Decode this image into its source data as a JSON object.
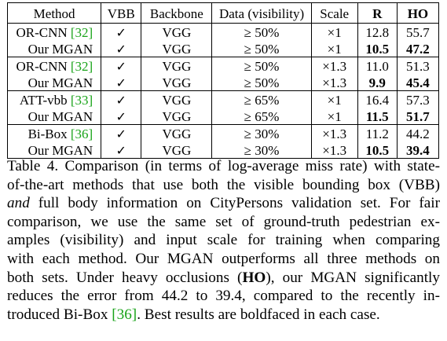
{
  "table": {
    "headers": {
      "method": "Method",
      "vbb": "VBB",
      "backbone": "Backbone",
      "data": "Data (visibility)",
      "scale": "Scale",
      "r": "R",
      "ho": "HO"
    },
    "groups": [
      {
        "rows": [
          {
            "method": "OR-CNN ",
            "ref": "[32]",
            "vbb": "✓",
            "backbone": "VGG",
            "data": "≥ 50%",
            "scale": "×1",
            "r": "12.8",
            "ho": "55.7",
            "r_bold": false,
            "ho_bold": false
          },
          {
            "method": "Our MGAN",
            "ref": "",
            "vbb": "✓",
            "backbone": "VGG",
            "data": "≥ 50%",
            "scale": "×1",
            "r": "10.5",
            "ho": "47.2",
            "r_bold": true,
            "ho_bold": true
          }
        ]
      },
      {
        "rows": [
          {
            "method": "OR-CNN ",
            "ref": "[32]",
            "vbb": "✓",
            "backbone": "VGG",
            "data": "≥ 50%",
            "scale": "×1.3",
            "r": "11.0",
            "ho": "51.3",
            "r_bold": false,
            "ho_bold": false
          },
          {
            "method": "Our MGAN",
            "ref": "",
            "vbb": "✓",
            "backbone": "VGG",
            "data": "≥ 50%",
            "scale": "×1.3",
            "r": "9.9",
            "ho": "45.4",
            "r_bold": true,
            "ho_bold": true
          }
        ]
      },
      {
        "rows": [
          {
            "method": "ATT-vbb ",
            "ref": "[33]",
            "vbb": "✓",
            "backbone": "VGG",
            "data": "≥ 65%",
            "scale": "×1",
            "r": "16.4",
            "ho": "57.3",
            "r_bold": false,
            "ho_bold": false
          },
          {
            "method": "Our MGAN",
            "ref": "",
            "vbb": "✓",
            "backbone": "VGG",
            "data": "≥ 65%",
            "scale": "×1",
            "r": "11.5",
            "ho": "51.7",
            "r_bold": true,
            "ho_bold": true
          }
        ]
      },
      {
        "rows": [
          {
            "method": "Bi-Box ",
            "ref": "[36]",
            "vbb": "✓",
            "backbone": "VGG",
            "data": "≥ 30%",
            "scale": "×1.3",
            "r": "11.2",
            "ho": "44.2",
            "r_bold": false,
            "ho_bold": false
          },
          {
            "method": "Our MGAN",
            "ref": "",
            "vbb": "✓",
            "backbone": "VGG",
            "data": "≥ 30%",
            "scale": "×1.3",
            "r": "10.5",
            "ho": "39.4",
            "r_bold": true,
            "ho_bold": true
          }
        ]
      }
    ]
  },
  "caption": {
    "l1": "Table 4. Comparison (in terms of log-average miss rate) with state-",
    "l2": "of-the-art methods that use both the visible bounding box (VBB)",
    "l3_italic": "and",
    "l3_rest": " full body information on CityPersons validation set. For fair",
    "l4": "comparison, we use the same set of ground-truth pedestrian ex-",
    "l5": "amples (visibility) and input scale for training when comparing",
    "l6": "with each method. Our MGAN outperforms all three methods on",
    "l7_a": "both sets. Under heavy occlusions (",
    "l7_bold": "HO",
    "l7_b": "), our MGAN significantly",
    "l8": "reduces the error from 44.2 to 39.4, compared to the recently in-",
    "l9_a": "troduced Bi-Box ",
    "l9_ref": "[36]",
    "l9_b": ". Best results are boldfaced in each case."
  },
  "colors": {
    "citation": "#19a319",
    "text": "#000000"
  }
}
